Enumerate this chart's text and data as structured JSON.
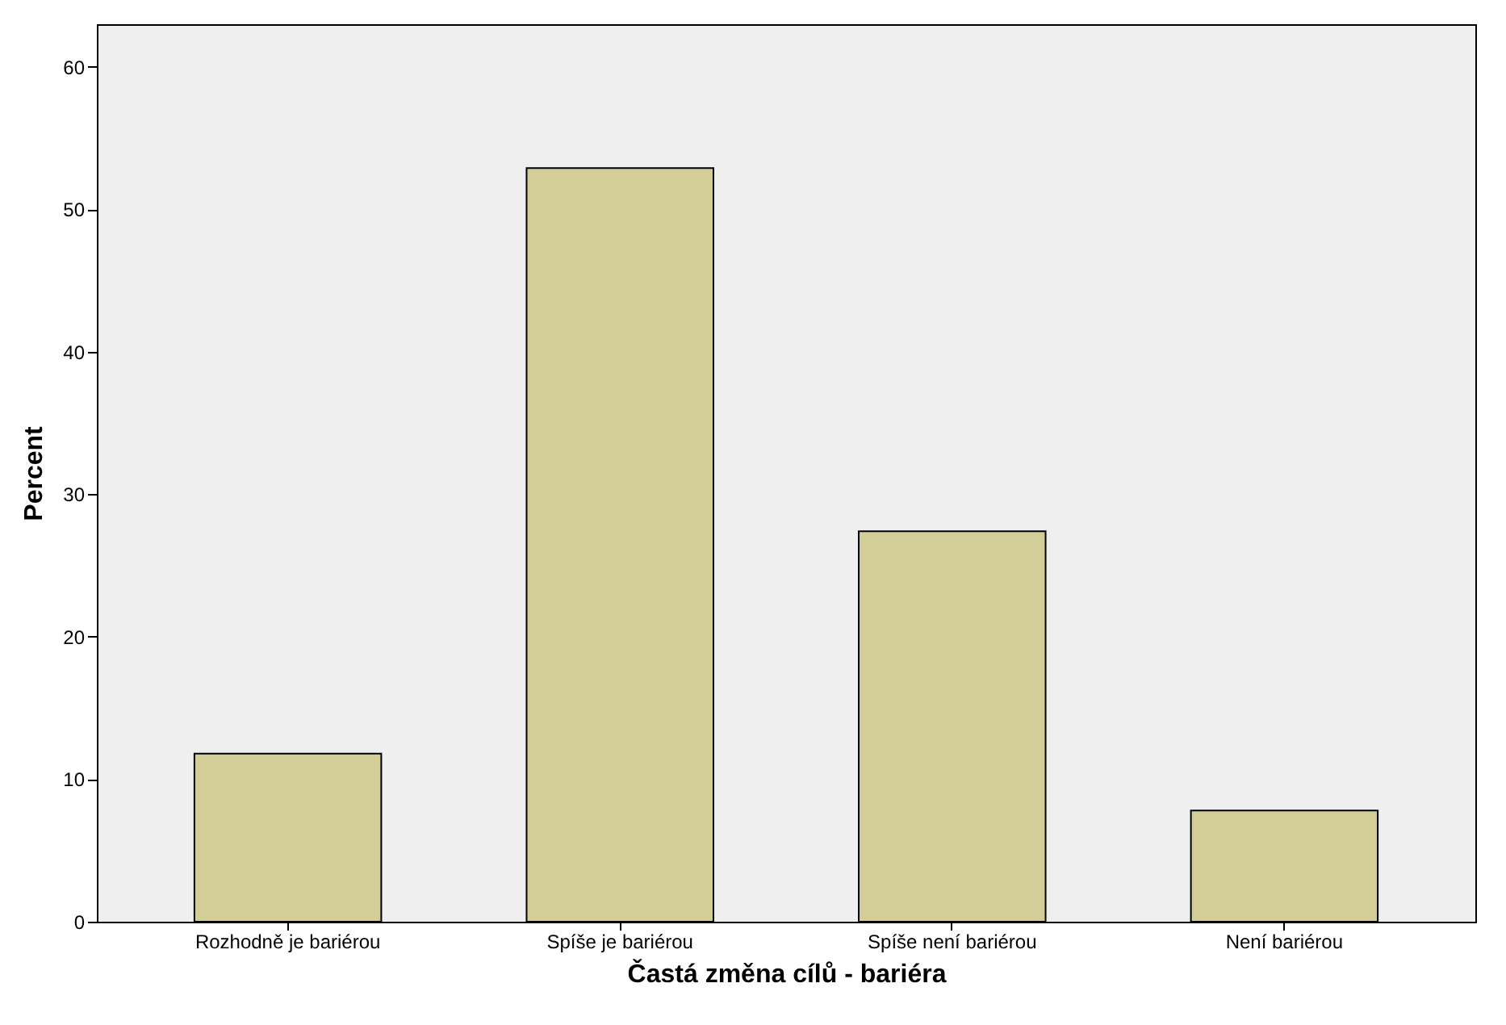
{
  "chart_data": {
    "type": "bar",
    "xlabel": "Častá změna cílů - bariéra",
    "ylabel": "Percent",
    "categories": [
      "Rozhodně je bariérou",
      "Spíše je bariérou",
      "Spíše není bariérou",
      "Není bariérou"
    ],
    "values": [
      11.8,
      52.9,
      27.4,
      7.8
    ],
    "color": "#d3ce97",
    "ylim": [
      0,
      63
    ],
    "yticks": [
      0,
      10,
      20,
      30,
      40,
      50,
      60
    ],
    "grid": false
  }
}
